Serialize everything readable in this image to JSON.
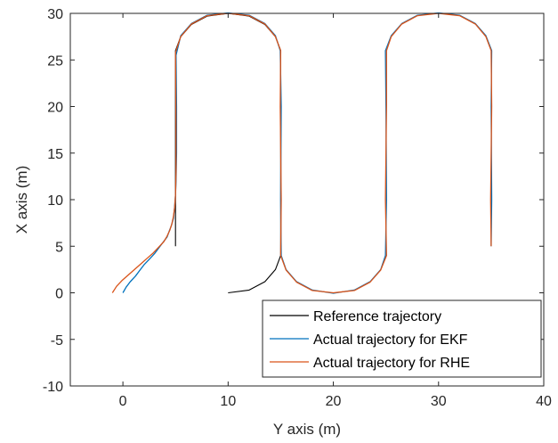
{
  "chart_data": {
    "type": "line",
    "xlabel": "Y axis (m)",
    "ylabel": "X axis (m)",
    "xlim": [
      -5,
      40
    ],
    "ylim": [
      -10,
      30
    ],
    "xticks": [
      0,
      10,
      20,
      30,
      40
    ],
    "yticks": [
      -10,
      -5,
      0,
      5,
      10,
      15,
      20,
      25,
      30
    ],
    "grid": false,
    "legend_position": "bottom-right",
    "series": [
      {
        "name": "Reference trajectory",
        "color": "#000000",
        "points": [
          [
            5,
            5
          ],
          [
            5,
            26
          ],
          [
            5.5,
            27.5
          ],
          [
            6.5,
            28.8
          ],
          [
            8,
            29.7
          ],
          [
            10,
            30
          ],
          [
            12,
            29.7
          ],
          [
            13.5,
            28.8
          ],
          [
            14.5,
            27.5
          ],
          [
            15,
            26
          ],
          [
            15,
            4
          ],
          [
            14.5,
            2.5
          ],
          [
            13.5,
            1.2
          ],
          [
            12,
            0.3
          ],
          [
            10,
            0
          ]
        ]
      },
      {
        "name": "Actual trajectory for EKF",
        "color": "#0072BD",
        "points": [
          [
            0,
            0
          ],
          [
            0.3,
            0.6
          ],
          [
            0.7,
            1.2
          ],
          [
            1.2,
            1.8
          ],
          [
            1.6,
            2.4
          ],
          [
            2,
            3.0
          ],
          [
            2.5,
            3.6
          ],
          [
            3,
            4.2
          ],
          [
            3.4,
            4.8
          ],
          [
            3.8,
            5.4
          ],
          [
            4.2,
            6.0
          ],
          [
            4.4,
            6.6
          ],
          [
            4.6,
            7.2
          ],
          [
            4.8,
            8.0
          ],
          [
            4.9,
            9.0
          ],
          [
            5,
            10.5
          ],
          [
            5.05,
            12
          ],
          [
            5.1,
            15
          ],
          [
            5.1,
            20
          ],
          [
            5.05,
            25.5
          ],
          [
            5.5,
            27.6
          ],
          [
            6.5,
            28.9
          ],
          [
            8,
            29.8
          ],
          [
            10,
            30.05
          ],
          [
            12,
            29.8
          ],
          [
            13.5,
            28.9
          ],
          [
            14.5,
            27.6
          ],
          [
            14.95,
            26
          ],
          [
            15.05,
            20
          ],
          [
            15.0,
            10
          ],
          [
            15.05,
            4
          ],
          [
            15.5,
            2.5
          ],
          [
            16.5,
            1.2
          ],
          [
            18,
            0.3
          ],
          [
            20,
            -0.05
          ],
          [
            22,
            0.3
          ],
          [
            23.5,
            1.2
          ],
          [
            24.5,
            2.5
          ],
          [
            24.95,
            4
          ],
          [
            25.05,
            10
          ],
          [
            25.0,
            20
          ],
          [
            24.95,
            26
          ],
          [
            25.5,
            27.6
          ],
          [
            26.5,
            28.9
          ],
          [
            28,
            29.8
          ],
          [
            30,
            30.05
          ],
          [
            32,
            29.8
          ],
          [
            33.5,
            28.9
          ],
          [
            34.5,
            27.6
          ],
          [
            35.05,
            26
          ],
          [
            35.0,
            20
          ],
          [
            35.05,
            10
          ],
          [
            35,
            5
          ]
        ]
      },
      {
        "name": "Actual trajectory for RHE",
        "color": "#D95319",
        "points": [
          [
            -1,
            0
          ],
          [
            -0.6,
            0.7
          ],
          [
            -0.1,
            1.3
          ],
          [
            0.5,
            1.9
          ],
          [
            1.1,
            2.5
          ],
          [
            1.7,
            3.1
          ],
          [
            2.3,
            3.7
          ],
          [
            2.9,
            4.3
          ],
          [
            3.4,
            4.9
          ],
          [
            3.9,
            5.5
          ],
          [
            4.2,
            6.1
          ],
          [
            4.45,
            6.7
          ],
          [
            4.65,
            7.4
          ],
          [
            4.8,
            8.2
          ],
          [
            4.92,
            9.2
          ],
          [
            5.0,
            10.5
          ],
          [
            5.05,
            13
          ],
          [
            5.05,
            18
          ],
          [
            5.0,
            25.8
          ],
          [
            5.5,
            27.5
          ],
          [
            6.5,
            28.85
          ],
          [
            8,
            29.75
          ],
          [
            10,
            30.0
          ],
          [
            12,
            29.75
          ],
          [
            13.5,
            28.85
          ],
          [
            14.5,
            27.5
          ],
          [
            15.0,
            26
          ],
          [
            14.95,
            20
          ],
          [
            15.05,
            10
          ],
          [
            15.0,
            4
          ],
          [
            15.5,
            2.45
          ],
          [
            16.5,
            1.15
          ],
          [
            18,
            0.25
          ],
          [
            20,
            0.0
          ],
          [
            22,
            0.25
          ],
          [
            23.5,
            1.15
          ],
          [
            24.5,
            2.45
          ],
          [
            25.05,
            4
          ],
          [
            24.95,
            10
          ],
          [
            25.05,
            20
          ],
          [
            25.05,
            26
          ],
          [
            25.5,
            27.5
          ],
          [
            26.5,
            28.85
          ],
          [
            28,
            29.75
          ],
          [
            30,
            30.0
          ],
          [
            32,
            29.75
          ],
          [
            33.5,
            28.85
          ],
          [
            34.5,
            27.5
          ],
          [
            35.0,
            26
          ],
          [
            35.05,
            20
          ],
          [
            34.95,
            10
          ],
          [
            35,
            5
          ]
        ]
      }
    ]
  }
}
